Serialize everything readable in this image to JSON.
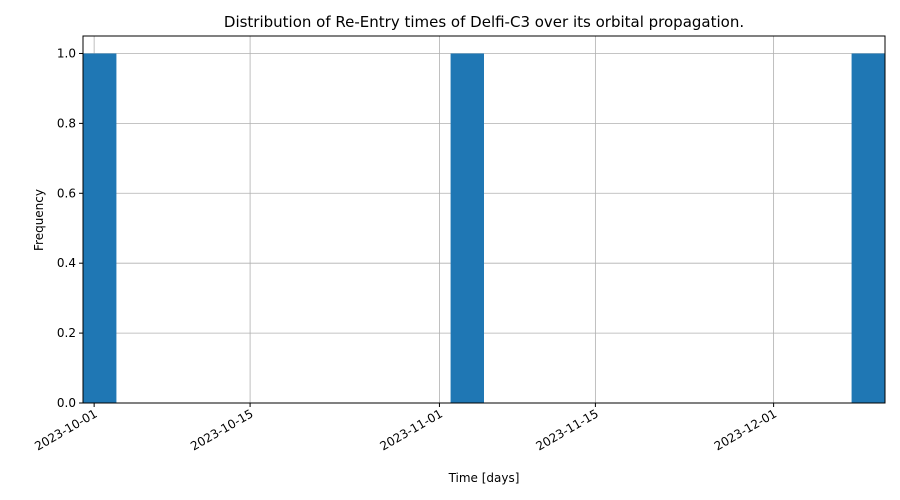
{
  "chart_data": {
    "type": "bar",
    "title": "Distribution of Re-Entry times of Delfi-C3 over its orbital propagation.",
    "xlabel": "Time [days]",
    "ylabel": "Frequency",
    "x_axis": {
      "type": "date",
      "range": [
        "2023-09-30",
        "2023-12-11"
      ],
      "ticks": [
        "2023-10-01",
        "2023-10-15",
        "2023-11-01",
        "2023-11-15",
        "2023-12-01"
      ]
    },
    "ylim": [
      0,
      1.05
    ],
    "yticks": [
      "0.0",
      "0.2",
      "0.4",
      "0.6",
      "0.8",
      "1.0"
    ],
    "bins": [
      {
        "start": "2023-09-30",
        "end": "2023-10-03",
        "value": 1
      },
      {
        "start": "2023-11-02",
        "end": "2023-11-05",
        "value": 1
      },
      {
        "start": "2023-12-08",
        "end": "2023-12-11",
        "value": 1
      }
    ],
    "grid": true,
    "color": "#1f77b4"
  }
}
